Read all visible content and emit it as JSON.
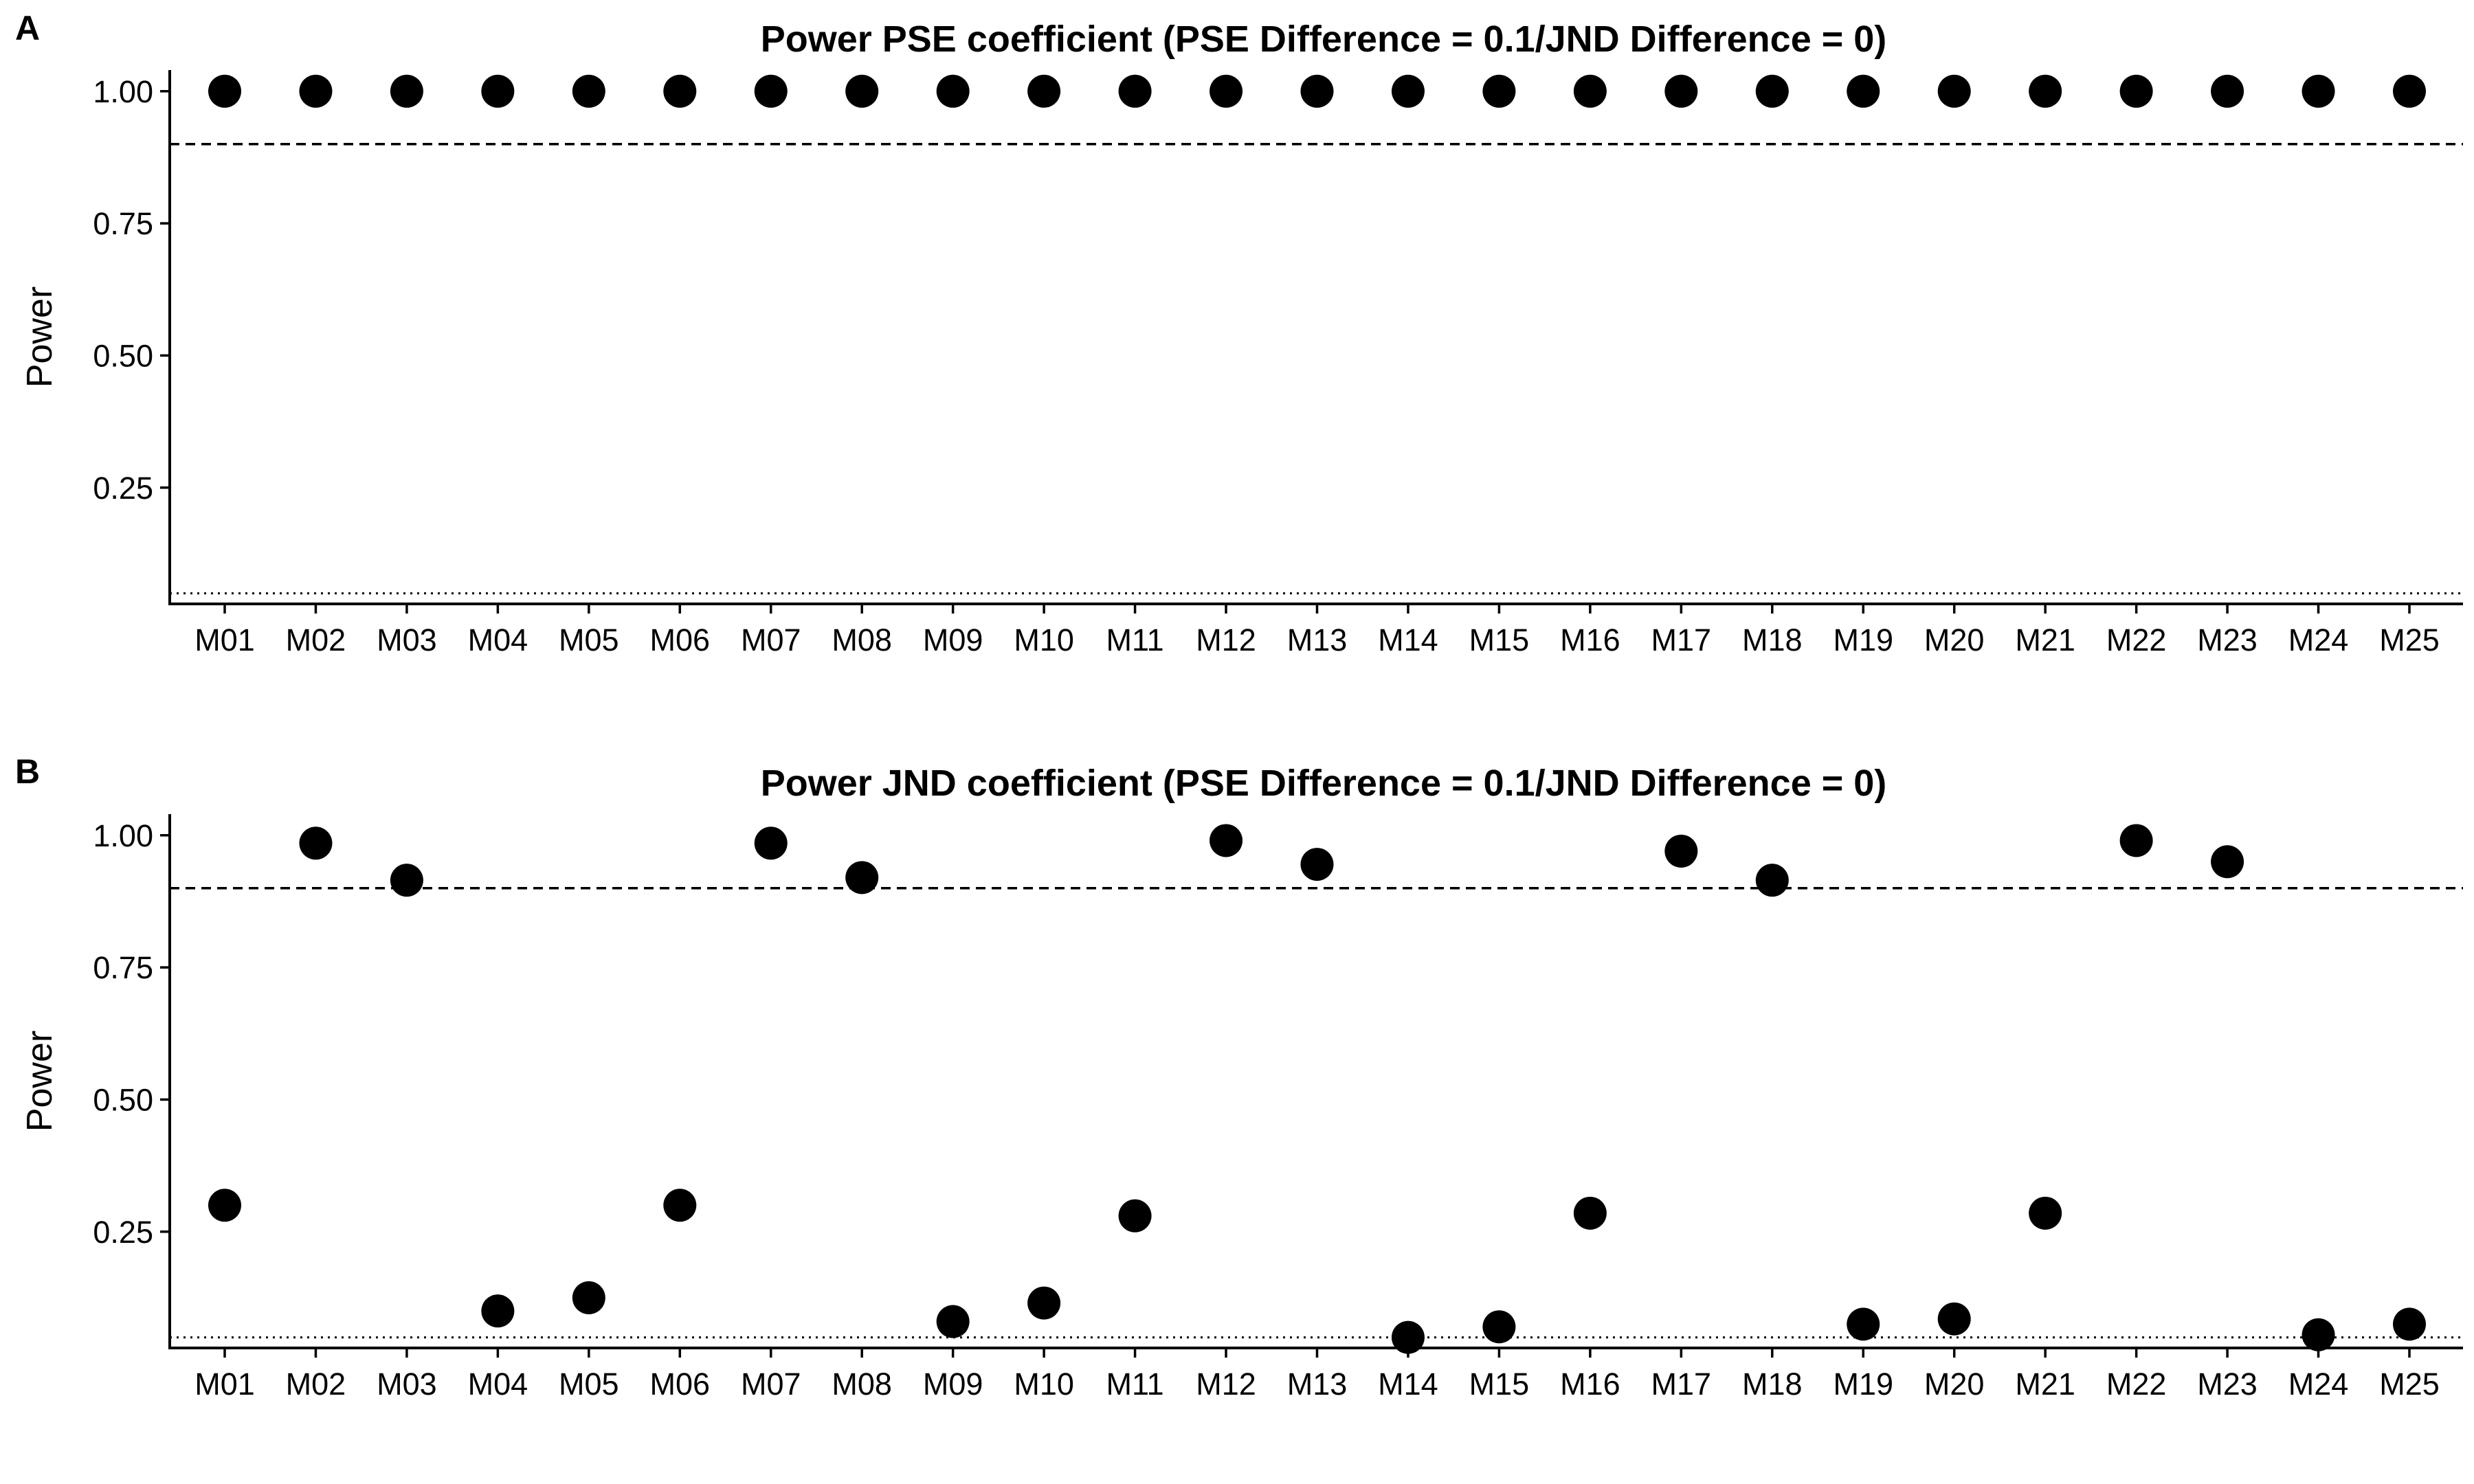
{
  "chart_data": [
    {
      "panel": "A",
      "type": "scatter",
      "title": "Power PSE coefficient (PSE Difference = 0.1/JND Difference = 0)",
      "xlabel": "",
      "ylabel": "Power",
      "categories": [
        "M01",
        "M02",
        "M03",
        "M04",
        "M05",
        "M06",
        "M07",
        "M08",
        "M09",
        "M10",
        "M11",
        "M12",
        "M13",
        "M14",
        "M15",
        "M16",
        "M17",
        "M18",
        "M19",
        "M20",
        "M21",
        "M22",
        "M23",
        "M24",
        "M25"
      ],
      "values": [
        1.0,
        1.0,
        1.0,
        1.0,
        1.0,
        1.0,
        1.0,
        1.0,
        1.0,
        1.0,
        1.0,
        1.0,
        1.0,
        1.0,
        1.0,
        1.0,
        1.0,
        1.0,
        1.0,
        1.0,
        1.0,
        1.0,
        1.0,
        1.0,
        1.0
      ],
      "yticks": [
        1.0,
        0.75,
        0.5,
        0.25
      ],
      "ytick_labels": [
        "1.00",
        "0.75",
        "0.50",
        "0.25"
      ],
      "ylim": [
        0.03,
        1.04
      ],
      "reference_lines": [
        {
          "y": 0.9,
          "style": "dashed"
        },
        {
          "y": 0.05,
          "style": "dotted"
        }
      ],
      "grid": false,
      "color": "#000000"
    },
    {
      "panel": "B",
      "type": "scatter",
      "title": "Power JND coefficient (PSE Difference = 0.1/JND Difference = 0)",
      "xlabel": "",
      "ylabel": "Power",
      "categories": [
        "M01",
        "M02",
        "M03",
        "M04",
        "M05",
        "M06",
        "M07",
        "M08",
        "M09",
        "M10",
        "M11",
        "M12",
        "M13",
        "M14",
        "M15",
        "M16",
        "M17",
        "M18",
        "M19",
        "M20",
        "M21",
        "M22",
        "M23",
        "M24",
        "M25"
      ],
      "values": [
        0.3,
        0.985,
        0.915,
        0.1,
        0.125,
        0.3,
        0.985,
        0.92,
        0.08,
        0.115,
        0.28,
        0.99,
        0.945,
        0.05,
        0.07,
        0.285,
        0.97,
        0.915,
        0.075,
        0.085,
        0.285,
        0.99,
        0.95,
        0.055,
        0.075
      ],
      "yticks": [
        1.0,
        0.75,
        0.5,
        0.25
      ],
      "ytick_labels": [
        "1.00",
        "0.75",
        "0.50",
        "0.25"
      ],
      "ylim": [
        0.03,
        1.04
      ],
      "reference_lines": [
        {
          "y": 0.9,
          "style": "dashed"
        },
        {
          "y": 0.05,
          "style": "dotted"
        }
      ],
      "grid": false,
      "color": "#000000"
    }
  ]
}
